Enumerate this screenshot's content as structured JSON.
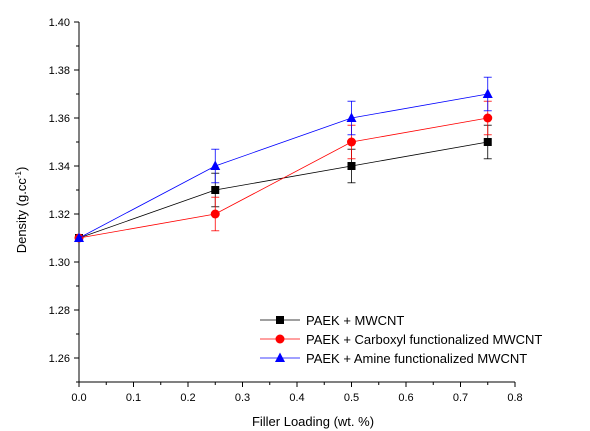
{
  "chart_data": {
    "type": "line",
    "xlabel": "Filler Loading (wt. %)",
    "ylabel_main": "Density (g.cc",
    "ylabel_sup": "-1",
    "ylabel_tail": ")",
    "xlim": [
      0.0,
      0.8
    ],
    "ylim": [
      1.25,
      1.4
    ],
    "xticks": [
      0.0,
      0.1,
      0.2,
      0.3,
      0.4,
      0.5,
      0.6,
      0.7,
      0.8
    ],
    "xtick_labels": [
      "0.0",
      "0.1",
      "0.2",
      "0.3",
      "0.4",
      "0.5",
      "0.6",
      "0.7",
      "0.8"
    ],
    "yticks": [
      1.26,
      1.28,
      1.3,
      1.32,
      1.34,
      1.36,
      1.38,
      1.4
    ],
    "ytick_labels": [
      "1.26",
      "1.28",
      "1.30",
      "1.32",
      "1.34",
      "1.36",
      "1.38",
      "1.40"
    ],
    "grid": false,
    "legend_position": "bottom-right",
    "series": [
      {
        "name": "PAEK + MWCNT",
        "color": "#000000",
        "marker": "square",
        "x": [
          0.0,
          0.25,
          0.5,
          0.75
        ],
        "y": [
          1.31,
          1.33,
          1.34,
          1.35
        ],
        "err": [
          0.0,
          0.007,
          0.007,
          0.007
        ]
      },
      {
        "name": "PAEK + Carboxyl functionalized MWCNT",
        "color": "#ff0000",
        "marker": "circle",
        "x": [
          0.0,
          0.25,
          0.5,
          0.75
        ],
        "y": [
          1.31,
          1.32,
          1.35,
          1.36
        ],
        "err": [
          0.0,
          0.007,
          0.007,
          0.007
        ]
      },
      {
        "name": "PAEK + Amine functionalized MWCNT",
        "color": "#0000ff",
        "marker": "triangle",
        "x": [
          0.0,
          0.25,
          0.5,
          0.75
        ],
        "y": [
          1.31,
          1.34,
          1.36,
          1.37
        ],
        "err": [
          0.0,
          0.007,
          0.007,
          0.007
        ]
      }
    ]
  }
}
